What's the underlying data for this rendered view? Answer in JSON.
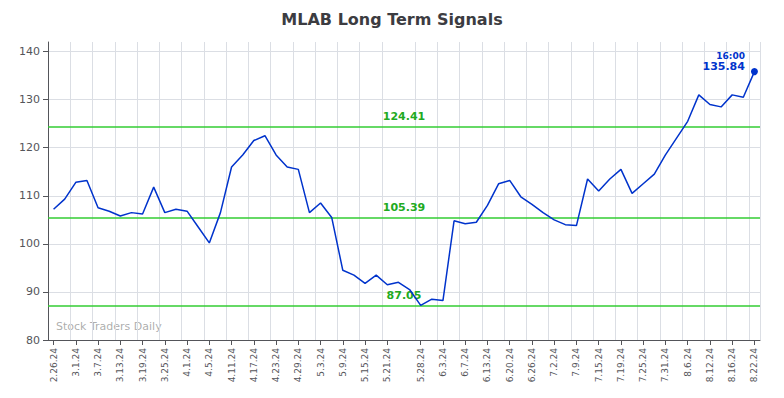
{
  "chart_data": {
    "type": "line",
    "title": "MLAB Long Term Signals",
    "categories": [
      "2.26.24",
      null,
      "3.1.24",
      null,
      "3.7.24",
      null,
      "3.13.24",
      null,
      "3.19.24",
      null,
      "3.25.24",
      null,
      "4.1.24",
      null,
      "4.5.24",
      null,
      "4.11.24",
      null,
      "4.17.24",
      null,
      "4.23.24",
      null,
      "4.29.24",
      null,
      "5.3.24",
      null,
      "5.9.24",
      null,
      "5.15.24",
      null,
      "5.21.24",
      null,
      null,
      "5.28.24",
      null,
      "6.3.24",
      null,
      "6.7.24",
      null,
      "6.13.24",
      null,
      "6.20.24",
      null,
      "6.26.24",
      null,
      "7.2.24",
      null,
      "7.9.24",
      null,
      "7.15.24",
      null,
      "7.19.24",
      null,
      "7.25.24",
      null,
      "7.31.24",
      null,
      "8.6.24",
      null,
      "8.12.24",
      null,
      "8.16.24",
      null,
      "8.22.24"
    ],
    "values": [
      107.2,
      109.3,
      112.8,
      113.2,
      107.5,
      106.8,
      105.8,
      106.5,
      106.2,
      111.8,
      106.5,
      107.2,
      106.8,
      103.5,
      100.2,
      106.5,
      116.0,
      118.5,
      121.5,
      122.5,
      118.5,
      116.0,
      115.5,
      106.5,
      108.5,
      105.5,
      94.5,
      93.5,
      91.8,
      93.5,
      91.5,
      92.0,
      90.5,
      87.2,
      88.5,
      88.2,
      104.8,
      104.2,
      104.5,
      108.0,
      112.5,
      113.2,
      109.8,
      108.2,
      106.5,
      105.0,
      104.0,
      103.8,
      113.5,
      111.0,
      113.5,
      115.5,
      110.5,
      112.5,
      114.5,
      118.5,
      122.0,
      125.5,
      131.0,
      129.0,
      128.5,
      131.0,
      130.5,
      135.84
    ],
    "color": "#0033cc",
    "ylim": [
      80,
      142
    ],
    "yticks": [
      80,
      90,
      100,
      110,
      120,
      130,
      140
    ],
    "grid": true,
    "hlines": [
      {
        "y": 87.05,
        "label": "87.05"
      },
      {
        "y": 105.39,
        "label": "105.39"
      },
      {
        "y": 124.41,
        "label": "124.41"
      }
    ],
    "hline_color": "#33cc33",
    "hline_label_color": "#22aa22",
    "last_point_label": "16:00",
    "watermark": "Stock Traders Daily"
  }
}
